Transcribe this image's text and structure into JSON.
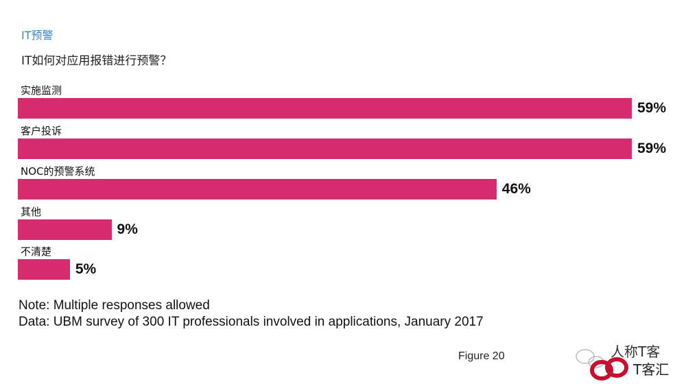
{
  "header": {
    "section": "IT预警",
    "question": "IT如何对应用报错进行预警？"
  },
  "chart_data": {
    "type": "bar",
    "orientation": "horizontal",
    "title": "IT如何对应用报错进行预警？",
    "categories": [
      "实施监测",
      "客户投诉",
      "NOC的预警系统",
      "其他",
      "不清楚"
    ],
    "values": [
      59,
      59,
      46,
      9,
      5
    ],
    "value_labels": [
      "59%",
      "59%",
      "46%",
      "9%",
      "5%"
    ],
    "unit": "%",
    "xlim": [
      0,
      59
    ],
    "bar_color": "#d42c6e",
    "grid": false
  },
  "notes": {
    "note": "Note: Multiple responses allowed",
    "data": "Data: UBM survey of 300 IT professionals involved in applications, January 2017"
  },
  "figure_label": "Figure 20",
  "watermark": {
    "line1": "人称T客",
    "line2": "T客汇"
  }
}
